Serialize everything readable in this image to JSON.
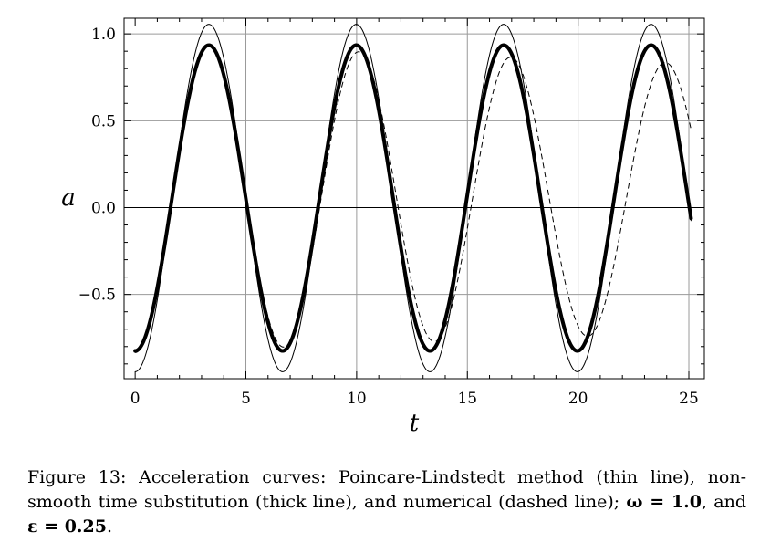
{
  "chart_data": {
    "type": "line",
    "title": "",
    "xlabel": "t",
    "ylabel": "a",
    "xlim": [
      -0.5,
      25.7
    ],
    "ylim": [
      -0.985,
      1.09
    ],
    "x_ticks": [
      0,
      5,
      10,
      15,
      20,
      25
    ],
    "x_tick_labels": [
      "0",
      "5",
      "10",
      "15",
      "20",
      "25"
    ],
    "y_ticks": [
      -0.5,
      0.0,
      0.5,
      1.0
    ],
    "y_tick_labels": [
      "−0.5",
      "0.0",
      "0.5",
      "1.0"
    ],
    "grid": true,
    "x_domain": [
      0,
      25.1
    ],
    "series": [
      {
        "style": "thin",
        "model": "cosine",
        "mean": 0.055,
        "amplitude": 1.0,
        "frequency": 0.944,
        "phase": 3.14159,
        "damping": 0,
        "phase_drift": 0
      },
      {
        "style": "thick",
        "model": "cosine",
        "mean": 0.055,
        "amplitude": 0.88,
        "frequency": 0.944,
        "phase": 3.14159,
        "damping": 0,
        "phase_drift": 0
      },
      {
        "style": "dashed",
        "model": "cosine",
        "mean": 0.055,
        "amplitude": 0.89,
        "frequency": 0.944,
        "phase": 3.14159,
        "damping": 0.0055,
        "phase_drift": 0.028
      }
    ]
  },
  "caption": {
    "figure_label": "Figure 13:",
    "text": "Acceleration curves: Poincare-Lindstedt method (thin line), non-smooth time substitution (thick line), and numerical (dashed line); ",
    "omega_part": "ω = 1.0",
    "mid": ", and ",
    "epsilon_part": "ε = 0.25",
    "end": "."
  }
}
